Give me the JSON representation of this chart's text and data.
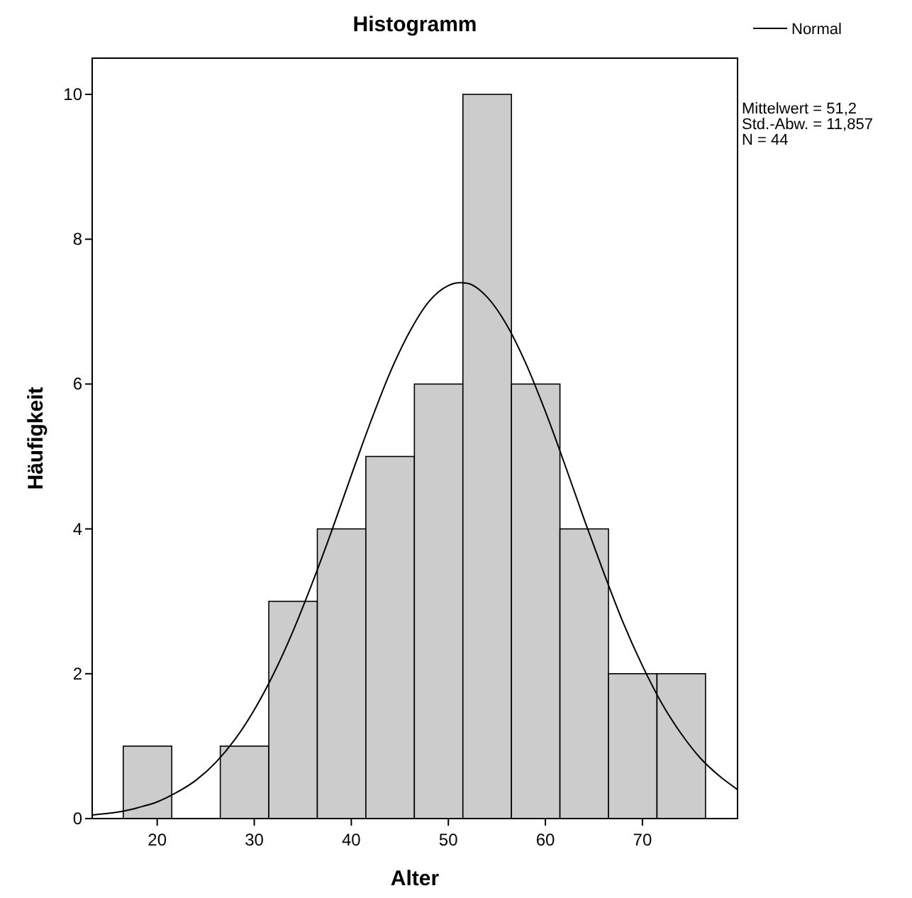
{
  "chart_data": {
    "type": "histogram",
    "title": "Histogramm",
    "xlabel": "Alter",
    "ylabel": "Häufigkeit",
    "bins": [
      16.5,
      21.5,
      26.5,
      31.5,
      36.5,
      41.5,
      46.5,
      51.5,
      56.5,
      61.5,
      66.5,
      71.5,
      76.5
    ],
    "values": [
      1,
      0,
      1,
      3,
      4,
      5,
      6,
      10,
      6,
      4,
      2,
      2
    ],
    "color": "#cccccc",
    "series": [
      {
        "type": "line",
        "name": "Normal",
        "color": "#000000",
        "x": [
          13.3,
          16,
          18,
          20,
          22,
          24,
          26,
          28,
          30,
          32,
          34,
          36,
          38,
          40,
          42,
          44,
          46,
          48,
          50,
          51.2,
          52,
          54,
          56,
          58,
          60,
          62,
          64,
          66,
          68,
          70,
          72,
          74,
          76,
          78,
          79.8
        ],
        "values": [
          0.05,
          0.09,
          0.15,
          0.23,
          0.36,
          0.53,
          0.77,
          1.09,
          1.5,
          2.0,
          2.59,
          3.26,
          3.98,
          4.74,
          5.48,
          6.16,
          6.72,
          7.14,
          7.36,
          7.4,
          7.39,
          7.2,
          6.82,
          6.28,
          5.62,
          4.89,
          4.13,
          3.4,
          2.71,
          2.11,
          1.59,
          1.17,
          0.83,
          0.58,
          0.4
        ]
      }
    ],
    "annotations": [
      "Mittelwert = 51,2",
      "Std.-Abw. = 11,857",
      "N = 44"
    ],
    "xlim": [
      13.3,
      79.8
    ],
    "xticks": [
      20,
      30,
      40,
      50,
      60,
      70
    ],
    "ylim": [
      0,
      10.5
    ],
    "yticks": [
      0,
      2,
      4,
      6,
      8,
      10
    ],
    "legend": "top right",
    "grid": false
  }
}
